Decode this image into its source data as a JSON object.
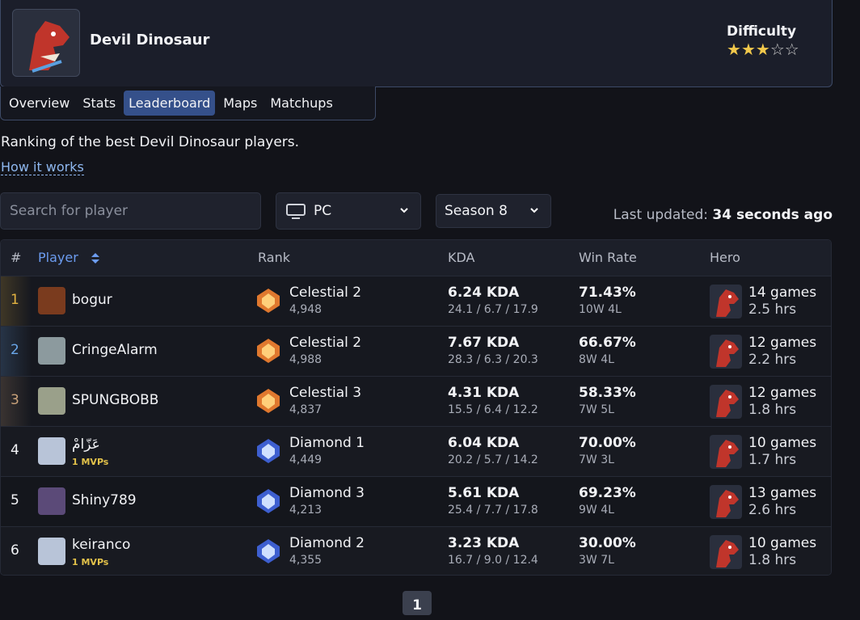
{
  "hero": {
    "name": "Devil Dinosaur",
    "difficulty_label": "Difficulty",
    "difficulty": 3,
    "difficulty_max": 5
  },
  "tabs": [
    {
      "label": "Overview"
    },
    {
      "label": "Stats"
    },
    {
      "label": "Leaderboard",
      "active": true
    },
    {
      "label": "Maps"
    },
    {
      "label": "Matchups"
    }
  ],
  "description": "Ranking of the best Devil Dinosaur players.",
  "how_link": "How it works",
  "search_placeholder": "Search for player",
  "platform": "PC",
  "season": "Season 8",
  "last_updated_label": "Last updated:",
  "last_updated": "34 seconds ago",
  "table": {
    "columns": [
      "#",
      "Player",
      "Rank",
      "KDA",
      "Win Rate",
      "Hero"
    ],
    "rows": [
      {
        "position": 1,
        "player": "bogur",
        "rank": "Celestial 2",
        "score": "4,948",
        "kda": "6.24 KDA",
        "kda_detail": "24.1 / 6.7 / 17.9",
        "win_rate": "71.43%",
        "record": "10W 4L",
        "games": "14 games",
        "hours": "2.5 hrs"
      },
      {
        "position": 2,
        "player": "CringeAlarm",
        "rank": "Celestial 2",
        "score": "4,988",
        "kda": "7.67 KDA",
        "kda_detail": "28.3 / 6.3 / 20.3",
        "win_rate": "66.67%",
        "record": "8W 4L",
        "games": "12 games",
        "hours": "2.2 hrs"
      },
      {
        "position": 3,
        "player": "SPUNGBOBB",
        "rank": "Celestial 3",
        "score": "4,837",
        "kda": "4.31 KDA",
        "kda_detail": "15.5 / 6.4 / 12.2",
        "win_rate": "58.33%",
        "record": "7W 5L",
        "games": "12 games",
        "hours": "1.8 hrs"
      },
      {
        "position": 4,
        "player": "عَزّامْ",
        "mvps": "1 MVPs",
        "rank": "Diamond 1",
        "score": "4,449",
        "kda": "6.04 KDA",
        "kda_detail": "20.2 / 5.7 / 14.2",
        "win_rate": "70.00%",
        "record": "7W 3L",
        "games": "10 games",
        "hours": "1.7 hrs"
      },
      {
        "position": 5,
        "player": "Shiny789",
        "rank": "Diamond 3",
        "score": "4,213",
        "kda": "5.61 KDA",
        "kda_detail": "25.4 / 7.7 / 17.8",
        "win_rate": "69.23%",
        "record": "9W 4L",
        "games": "13 games",
        "hours": "2.6 hrs"
      },
      {
        "position": 6,
        "player": "keiranco",
        "mvps": "1 MVPs",
        "rank": "Diamond 2",
        "score": "4,355",
        "kda": "3.23 KDA",
        "kda_detail": "16.7 / 9.0 / 12.4",
        "win_rate": "30.00%",
        "record": "3W 7L",
        "games": "10 games",
        "hours": "1.8 hrs"
      }
    ]
  },
  "pagination": {
    "pages": [
      1
    ]
  }
}
